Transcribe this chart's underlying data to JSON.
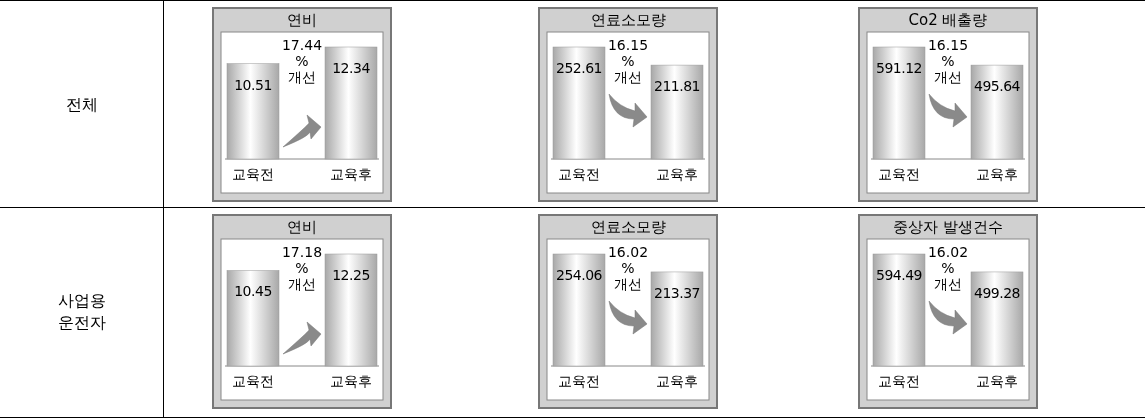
{
  "chart_data": [
    {
      "type": "other",
      "title": "전체"
    },
    {
      "type": "bar",
      "title": "연비",
      "categories": [
        "교육전",
        "교육후"
      ],
      "values": [
        10.51,
        12.34
      ],
      "color": "#a8a8a8",
      "data_labels": true,
      "annotations": [
        "17.44 % 개선"
      ]
    },
    {
      "type": "bar",
      "title": "연료소모량",
      "categories": [
        "교육전",
        "교육후"
      ],
      "values": [
        252.61,
        211.81
      ],
      "color": "#a8a8a8",
      "data_labels": true,
      "annotations": [
        "16.15 % 개선"
      ]
    },
    {
      "type": "bar",
      "title": "Co2 배출량",
      "categories": [
        "교육전",
        "교육후"
      ],
      "values": [
        591.12,
        495.64
      ],
      "color": "#a8a8a8",
      "data_labels": true,
      "annotations": [
        "16.15 % 개선"
      ]
    },
    {
      "type": "other",
      "title": "사업용 운전자"
    },
    {
      "type": "bar",
      "title": "연비",
      "categories": [
        "교육전",
        "교육후"
      ],
      "values": [
        10.45,
        12.25
      ],
      "color": "#a8a8a8",
      "data_labels": true,
      "annotations": [
        "17.18 % 개선"
      ]
    },
    {
      "type": "bar",
      "title": "연료소모량",
      "categories": [
        "교육전",
        "교육후"
      ],
      "values": [
        254.06,
        213.37
      ],
      "color": "#a8a8a8",
      "data_labels": true,
      "annotations": [
        "16.02 % 개선"
      ]
    },
    {
      "type": "bar",
      "title": "중상자 발생건수",
      "categories": [
        "교육전",
        "교육후"
      ],
      "values": [
        594.49,
        499.28
      ],
      "color": "#a8a8a8",
      "data_labels": true,
      "annotations": [
        "16.02 % 개선"
      ]
    }
  ]
}
